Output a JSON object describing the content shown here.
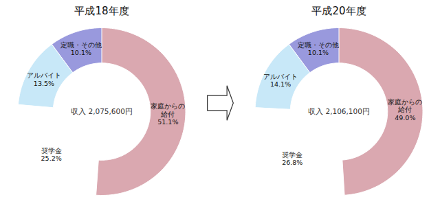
{
  "chart_data": [
    {
      "type": "donut",
      "title": "平成18年度",
      "annotations": [
        "収入 2,075,600円"
      ],
      "categories": [
        "家庭からの\n給付",
        "奨学金",
        "アルバイト",
        "定職・その他"
      ],
      "values": [
        51.1,
        25.2,
        13.5,
        10.1
      ],
      "value_labels": [
        "51.1%",
        "25.2%",
        "13.5%",
        "10.1%"
      ],
      "colors": [
        "#daa8b0",
        "#ffffff",
        "#c8e8f8",
        "#9999dd"
      ],
      "data_labels": true
    },
    {
      "type": "donut",
      "title": "平成20年度",
      "annotations": [
        "収入 2,106,100円"
      ],
      "categories": [
        "家庭からの\n給付",
        "奨学金",
        "アルバイト",
        "定職・その他"
      ],
      "values": [
        49.0,
        26.8,
        14.1,
        10.1
      ],
      "value_labels": [
        "49.0%",
        "26.8%",
        "14.1%",
        "10.1%"
      ],
      "colors": [
        "#daa8b0",
        "#ffffff",
        "#c8e8f8",
        "#9999dd"
      ],
      "data_labels": true
    }
  ]
}
